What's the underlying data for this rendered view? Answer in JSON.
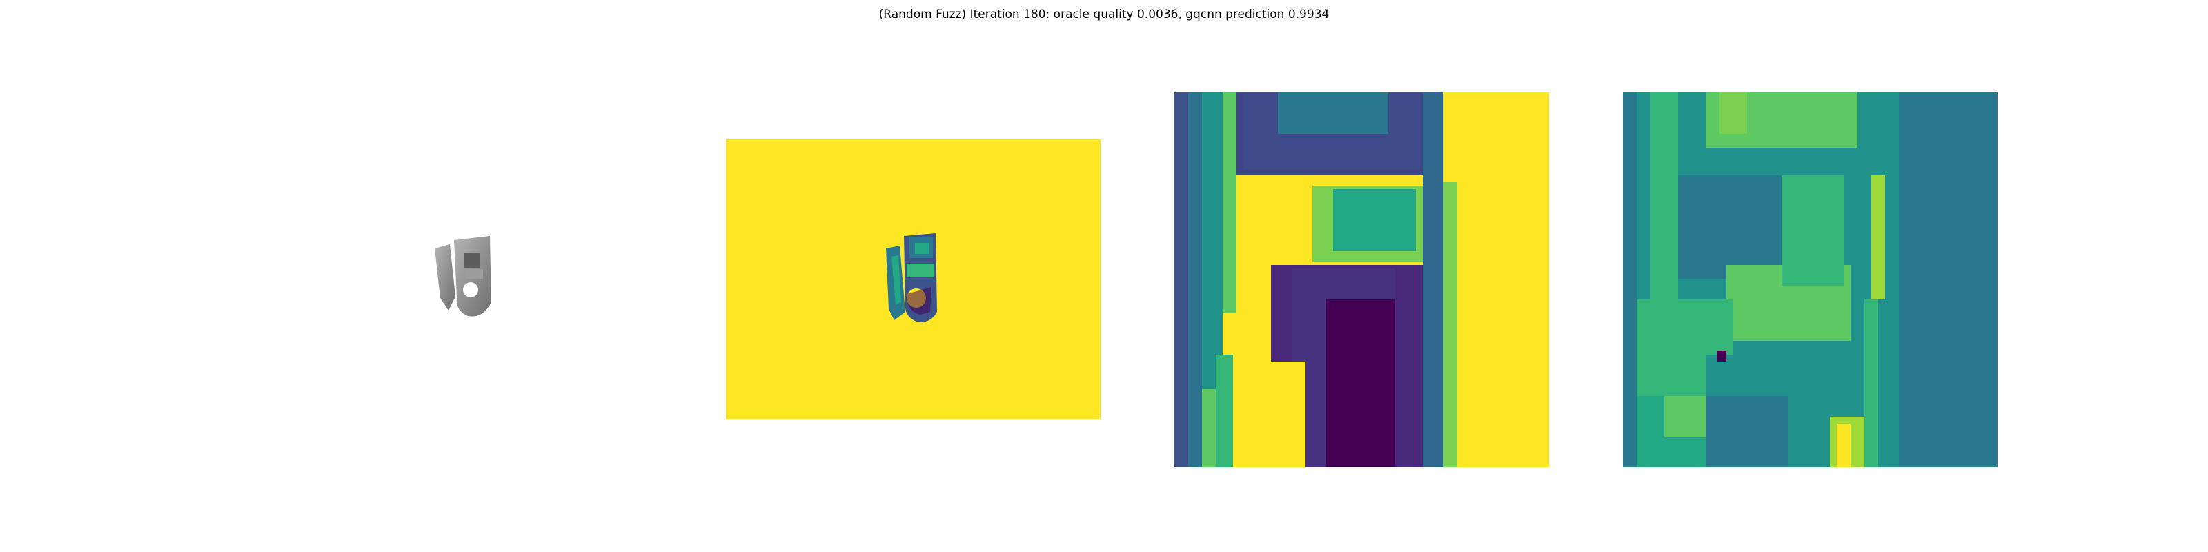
{
  "title": "(Random Fuzz) Iteration 180: oracle quality 0.0036, gqcnn prediction 0.9934",
  "colors": {
    "viridis_yellow": "#fde725",
    "viridis_teal": "#2a788e",
    "viridis_green": "#22a884",
    "viridis_purple": "#440154",
    "viridis_blue": "#3b528b",
    "object_gray": "#8c8c8c"
  },
  "panels": [
    {
      "content": "rendered-object-gray"
    },
    {
      "content": "depth-image-full"
    },
    {
      "content": "depth-crop"
    },
    {
      "content": "fuzzed-depth-crop"
    }
  ]
}
